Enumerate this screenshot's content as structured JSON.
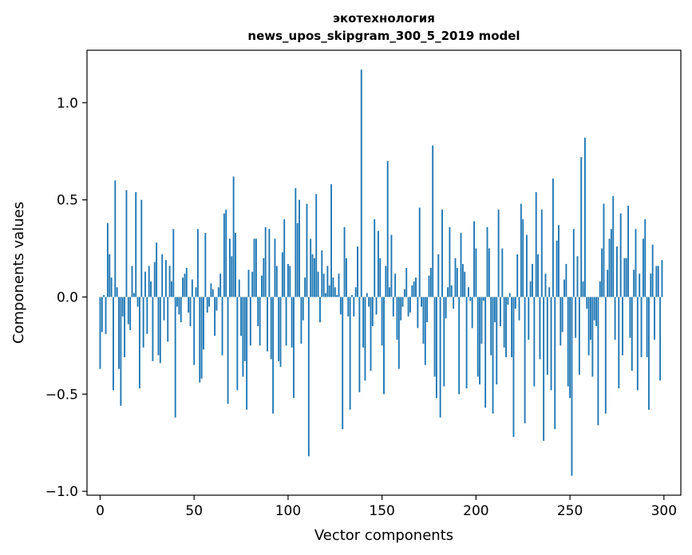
{
  "chart_data": {
    "type": "bar",
    "title": "экотехнология",
    "subtitle": "news_upos_skipgram_300_5_2019 model",
    "xlabel": "Vector components",
    "ylabel": "Components values",
    "xlim": [
      -7,
      309
    ],
    "ylim": [
      -1.02,
      1.27
    ],
    "xticks": [
      0,
      50,
      100,
      150,
      200,
      250,
      300
    ],
    "xtick_labels": [
      "0",
      "50",
      "100",
      "150",
      "200",
      "250",
      "300"
    ],
    "yticks": [
      -1.0,
      -0.5,
      0.0,
      0.5,
      1.0
    ],
    "ytick_labels": [
      "−1.0",
      "−0.5",
      "0.0",
      "0.5",
      "1.0"
    ],
    "bar_color": "#1f77b4",
    "grid": false,
    "x_start": 0,
    "values": [
      -0.37,
      -0.18,
      0.01,
      -0.19,
      0.38,
      0.22,
      0.1,
      -0.48,
      0.6,
      0.05,
      -0.37,
      -0.56,
      -0.1,
      -0.31,
      0.55,
      -0.14,
      -0.17,
      0.16,
      0.02,
      0.54,
      -0.05,
      -0.47,
      0.5,
      -0.26,
      0.13,
      -0.19,
      0.16,
      0.08,
      -0.33,
      0.18,
      0.28,
      -0.3,
      -0.34,
      0.22,
      -0.12,
      0.19,
      -0.23,
      0.16,
      0.08,
      0.35,
      -0.62,
      -0.05,
      -0.09,
      -0.13,
      0.1,
      0.12,
      0.15,
      -0.08,
      -0.15,
      0.09,
      -0.35,
      0.05,
      0.35,
      -0.44,
      -0.42,
      -0.27,
      0.33,
      -0.08,
      -0.05,
      0.07,
      0.04,
      -0.2,
      -0.07,
      0.05,
      0.12,
      -0.3,
      0.43,
      0.45,
      -0.55,
      0.3,
      0.21,
      0.62,
      0.33,
      -0.48,
      0.09,
      -0.2,
      -0.41,
      -0.33,
      -0.58,
      0.14,
      -0.25,
      0.13,
      0.3,
      0.3,
      -0.15,
      -0.25,
      0.11,
      0.2,
      0.36,
      -0.28,
      0.35,
      -0.32,
      -0.6,
      0.3,
      0.16,
      -0.33,
      -0.36,
      0.23,
      0.4,
      -0.25,
      0.17,
      0.16,
      -0.26,
      -0.52,
      0.56,
      0.38,
      0.5,
      -0.24,
      -0.12,
      0.1,
      0.48,
      -0.82,
      0.3,
      0.22,
      0.2,
      0.53,
      0.13,
      -0.13,
      0.24,
      0.12,
      0.02,
      0.16,
      0.06,
      0.58,
      0.1,
      0.05,
      0.01,
      0.12,
      -0.09,
      -0.68,
      0.36,
      0.2,
      -0.1,
      -0.58,
      0.01,
      -0.1,
      0.05,
      0.26,
      -0.49,
      1.17,
      -0.26,
      -0.43,
      0.02,
      -0.05,
      -0.38,
      -0.15,
      0.4,
      -0.09,
      0.34,
      0.2,
      -0.25,
      -0.5,
      0.16,
      0.7,
      0.05,
      0.32,
      -0.1,
      0.12,
      -0.22,
      -0.37,
      -0.12,
      -0.05,
      0.04,
      0.15,
      -0.1,
      -0.08,
      0.06,
      0.08,
      0.1,
      -0.16,
      0.46,
      -0.05,
      -0.24,
      -0.35,
      -0.13,
      0.11,
      0.15,
      0.78,
      -0.41,
      -0.52,
      0.22,
      -0.62,
      0.45,
      -0.46,
      -0.11,
      0.05,
      0.36,
      0.06,
      -0.06,
      0.2,
      0.15,
      -0.5,
      0.33,
      0.17,
      0.13,
      -0.47,
      0.05,
      -0.02,
      -0.16,
      0.39,
      0.25,
      -0.41,
      -0.45,
      -0.24,
      -0.02,
      -0.57,
      0.36,
      0.25,
      -0.3,
      -0.6,
      -0.13,
      -0.45,
      0.45,
      -0.15,
      0.25,
      -0.26,
      -0.31,
      -0.04,
      0.02,
      -0.31,
      -0.72,
      -0.06,
      0.22,
      -0.12,
      0.48,
      0.4,
      -0.65,
      0.32,
      -0.22,
      0.08,
      0.17,
      -0.46,
      0.54,
      0.22,
      -0.32,
      0.45,
      -0.74,
      0.12,
      -0.4,
      0.05,
      -0.48,
      0.61,
      -0.68,
      0.29,
      0.37,
      -0.25,
      -0.18,
      0.09,
      0.17,
      -0.46,
      -0.52,
      -0.92,
      0.35,
      -0.21,
      0.21,
      -0.4,
      0.72,
      0.08,
      0.82,
      -0.06,
      -0.3,
      -0.22,
      -0.41,
      -0.12,
      -0.15,
      -0.66,
      0.08,
      0.25,
      0.48,
      -0.6,
      0.14,
      0.3,
      0.35,
      0.52,
      -0.22,
      0.26,
      -0.47,
      0.43,
      -0.3,
      0.2,
      0.2,
      0.47,
      -0.21,
      -0.38,
      0.14,
      0.35,
      -0.48,
      0.12,
      -0.31,
      0.3,
      0.4,
      -0.31,
      -0.58,
      0.12,
      0.27,
      -0.22,
      0.16,
      0.16,
      -0.43,
      0.19
    ]
  }
}
